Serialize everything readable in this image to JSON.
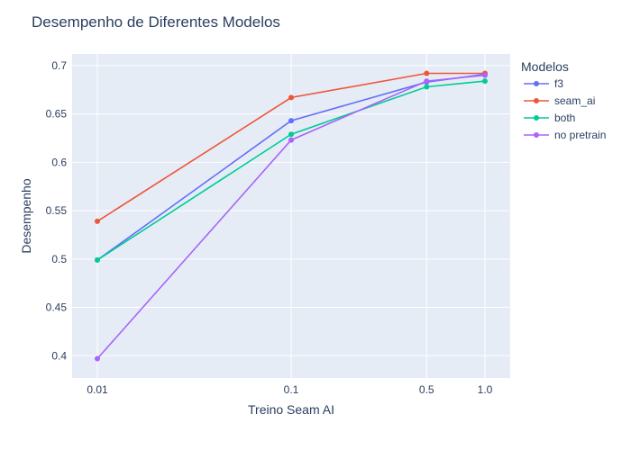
{
  "chart_data": {
    "type": "line",
    "title": "Desempenho de Diferentes Modelos",
    "xlabel": "Treino Seam AI",
    "ylabel": "Desempenho",
    "x_scale": "log",
    "x": [
      0.01,
      0.1,
      0.5,
      1.0
    ],
    "x_tick_labels": [
      "0.01",
      "0.1",
      "0.5",
      "1.0"
    ],
    "y_ticks": [
      0.4,
      0.45,
      0.5,
      0.55,
      0.6,
      0.65,
      0.7
    ],
    "y_tick_labels": [
      "0.4",
      "0.45",
      "0.5",
      "0.55",
      "0.6",
      "0.65",
      "0.7"
    ],
    "ylim": [
      0.377,
      0.712
    ],
    "grid": true,
    "plot_bgcolor": "#E5ECF6",
    "legend": {
      "title": "Modelos",
      "placement": "right"
    },
    "series": [
      {
        "name": "f3",
        "color": "#636EFA",
        "values": [
          0.499,
          0.643,
          0.683,
          0.691
        ]
      },
      {
        "name": "seam_ai",
        "color": "#EF553B",
        "values": [
          0.539,
          0.667,
          0.692,
          0.692
        ]
      },
      {
        "name": "both",
        "color": "#00CC96",
        "values": [
          0.499,
          0.629,
          0.678,
          0.684
        ]
      },
      {
        "name": "no pretrain",
        "color": "#AB63FA",
        "values": [
          0.397,
          0.623,
          0.684,
          0.69
        ]
      }
    ]
  }
}
